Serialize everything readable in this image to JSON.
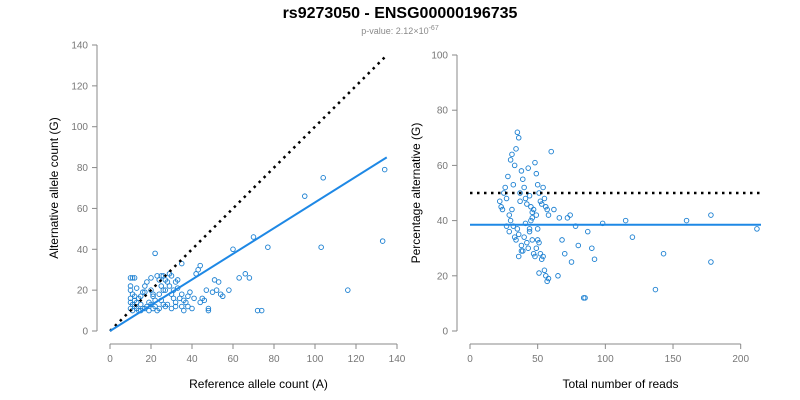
{
  "header": {
    "title": "rs9273050 - ENSG00000196735",
    "subtitle_prefix": "p-value: 2.12×10",
    "subtitle_exponent": "-67"
  },
  "colors": {
    "points": "#1a7fd1",
    "fit_line": "#1e88e5",
    "reference_line": "#000000",
    "axis": "#8a8a8a"
  },
  "chart_data": [
    {
      "type": "scatter",
      "xlabel": "Reference allele count (A)",
      "ylabel": "Alternative allele count (G)",
      "xlim": [
        0,
        140
      ],
      "ylim": [
        0,
        140
      ],
      "xticks": [
        0,
        20,
        40,
        60,
        80,
        100,
        120,
        140
      ],
      "yticks": [
        0,
        20,
        40,
        60,
        80,
        100,
        120,
        140
      ],
      "grid": false,
      "points": [
        [
          10,
          26
        ],
        [
          11,
          26
        ],
        [
          12,
          26
        ],
        [
          10,
          22
        ],
        [
          10,
          20
        ],
        [
          11,
          18
        ],
        [
          12,
          17
        ],
        [
          10,
          16
        ],
        [
          12,
          15
        ],
        [
          13,
          14
        ],
        [
          10,
          14
        ],
        [
          11,
          13
        ],
        [
          12,
          12
        ],
        [
          10,
          11
        ],
        [
          13,
          11
        ],
        [
          14,
          10
        ],
        [
          11,
          10
        ],
        [
          15,
          10
        ],
        [
          16,
          11
        ],
        [
          15,
          13
        ],
        [
          15,
          17
        ],
        [
          16,
          19
        ],
        [
          17,
          22
        ],
        [
          18,
          24
        ],
        [
          20,
          26
        ],
        [
          20,
          20
        ],
        [
          21,
          17
        ],
        [
          22,
          15
        ],
        [
          20,
          13
        ],
        [
          18,
          12
        ],
        [
          17,
          11
        ],
        [
          19,
          10
        ],
        [
          21,
          11
        ],
        [
          22,
          38
        ],
        [
          23,
          27
        ],
        [
          24,
          25
        ],
        [
          25,
          22
        ],
        [
          26,
          20
        ],
        [
          24,
          18
        ],
        [
          25,
          15
        ],
        [
          26,
          13
        ],
        [
          27,
          12
        ],
        [
          24,
          11
        ],
        [
          23,
          10
        ],
        [
          26,
          27
        ],
        [
          27,
          25
        ],
        [
          28,
          24
        ],
        [
          29,
          28
        ],
        [
          30,
          27
        ],
        [
          29,
          22
        ],
        [
          30,
          18
        ],
        [
          31,
          16
        ],
        [
          32,
          14
        ],
        [
          28,
          13
        ],
        [
          30,
          11
        ],
        [
          31,
          20
        ],
        [
          32,
          24
        ],
        [
          33,
          25
        ],
        [
          34,
          16
        ],
        [
          35,
          18
        ],
        [
          35,
          12
        ],
        [
          36,
          10
        ],
        [
          37,
          14
        ],
        [
          38,
          17
        ],
        [
          39,
          19
        ],
        [
          38,
          12
        ],
        [
          40,
          11
        ],
        [
          41,
          16
        ],
        [
          42,
          28
        ],
        [
          43,
          30
        ],
        [
          44,
          32
        ],
        [
          45,
          16
        ],
        [
          46,
          15
        ],
        [
          48,
          11
        ],
        [
          48,
          10
        ],
        [
          50,
          19
        ],
        [
          51,
          25
        ],
        [
          52,
          20
        ],
        [
          54,
          18
        ],
        [
          55,
          17
        ],
        [
          58,
          20
        ],
        [
          60,
          40
        ],
        [
          66,
          28
        ],
        [
          68,
          26
        ],
        [
          70,
          46
        ],
        [
          72,
          10
        ],
        [
          74,
          10
        ],
        [
          77,
          41
        ],
        [
          95,
          66
        ],
        [
          103,
          41
        ],
        [
          104,
          75
        ],
        [
          116,
          20
        ],
        [
          133,
          44
        ],
        [
          134,
          79
        ],
        [
          35,
          33
        ],
        [
          21,
          18
        ],
        [
          13,
          21
        ],
        [
          14,
          16
        ],
        [
          17,
          19
        ],
        [
          19,
          14
        ],
        [
          22,
          12
        ],
        [
          25,
          27
        ],
        [
          27,
          20
        ],
        [
          32,
          12
        ],
        [
          33,
          21
        ],
        [
          36,
          15
        ],
        [
          44,
          14
        ],
        [
          47,
          20
        ],
        [
          53,
          24
        ],
        [
          63,
          26
        ]
      ],
      "fit": {
        "x": [
          0,
          135
        ],
        "y": [
          0,
          85
        ]
      },
      "reference": {
        "x": [
          0,
          135
        ],
        "y": [
          0,
          135
        ]
      }
    },
    {
      "type": "scatter",
      "xlabel": "Total number of reads",
      "ylabel": "Percentage alternative (G)",
      "xlim": [
        0,
        215
      ],
      "ylim": [
        0,
        100
      ],
      "xticks": [
        0,
        50,
        100,
        150,
        200
      ],
      "yticks": [
        0,
        20,
        40,
        60,
        80,
        100
      ],
      "grid": false,
      "points": [
        [
          22,
          47
        ],
        [
          23,
          45
        ],
        [
          24,
          44
        ],
        [
          25,
          50
        ],
        [
          26,
          52
        ],
        [
          27,
          48
        ],
        [
          28,
          56
        ],
        [
          29,
          42
        ],
        [
          30,
          62
        ],
        [
          31,
          64
        ],
        [
          32,
          53
        ],
        [
          33,
          60
        ],
        [
          34,
          66
        ],
        [
          35,
          72
        ],
        [
          36,
          70
        ],
        [
          37,
          50
        ],
        [
          38,
          58
        ],
        [
          39,
          55
        ],
        [
          40,
          52
        ],
        [
          41,
          48
        ],
        [
          42,
          46
        ],
        [
          43,
          59
        ],
        [
          44,
          49
        ],
        [
          45,
          45
        ],
        [
          46,
          43
        ],
        [
          47,
          44
        ],
        [
          48,
          61
        ],
        [
          49,
          57
        ],
        [
          50,
          53
        ],
        [
          51,
          50
        ],
        [
          52,
          47
        ],
        [
          53,
          46
        ],
        [
          54,
          52
        ],
        [
          55,
          48
        ],
        [
          56,
          45
        ],
        [
          57,
          44
        ],
        [
          58,
          42
        ],
        [
          60,
          65
        ],
        [
          30,
          40
        ],
        [
          32,
          38
        ],
        [
          33,
          34
        ],
        [
          34,
          33
        ],
        [
          35,
          37
        ],
        [
          36,
          35
        ],
        [
          38,
          31
        ],
        [
          39,
          29
        ],
        [
          40,
          34
        ],
        [
          42,
          32
        ],
        [
          43,
          30
        ],
        [
          44,
          36
        ],
        [
          46,
          33
        ],
        [
          47,
          28
        ],
        [
          48,
          27
        ],
        [
          49,
          30
        ],
        [
          50,
          33
        ],
        [
          51,
          32
        ],
        [
          52,
          28
        ],
        [
          53,
          26
        ],
        [
          54,
          27
        ],
        [
          55,
          22
        ],
        [
          56,
          20
        ],
        [
          57,
          18
        ],
        [
          58,
          19
        ],
        [
          36,
          27
        ],
        [
          38,
          29
        ],
        [
          41,
          39
        ],
        [
          44,
          37
        ],
        [
          46,
          41
        ],
        [
          49,
          42
        ],
        [
          51,
          21
        ],
        [
          62,
          44
        ],
        [
          66,
          41
        ],
        [
          70,
          28
        ],
        [
          72,
          41
        ],
        [
          74,
          42
        ],
        [
          78,
          38
        ],
        [
          80,
          31
        ],
        [
          84,
          12
        ],
        [
          85,
          12
        ],
        [
          90,
          30
        ],
        [
          92,
          26
        ],
        [
          98,
          39
        ],
        [
          115,
          40
        ],
        [
          120,
          34
        ],
        [
          137,
          15
        ],
        [
          143,
          28
        ],
        [
          160,
          40
        ],
        [
          178,
          42
        ],
        [
          178,
          25
        ],
        [
          212,
          37
        ],
        [
          27,
          38
        ],
        [
          29,
          36
        ],
        [
          31,
          44
        ],
        [
          37,
          47
        ],
        [
          45,
          40
        ],
        [
          50,
          37
        ],
        [
          65,
          20
        ],
        [
          68,
          33
        ],
        [
          75,
          25
        ],
        [
          87,
          36
        ]
      ],
      "fit": {
        "x": [
          0,
          215
        ],
        "y": [
          38.5,
          38.5
        ]
      },
      "reference": {
        "x": [
          0,
          215
        ],
        "y": [
          50,
          50
        ]
      }
    }
  ]
}
